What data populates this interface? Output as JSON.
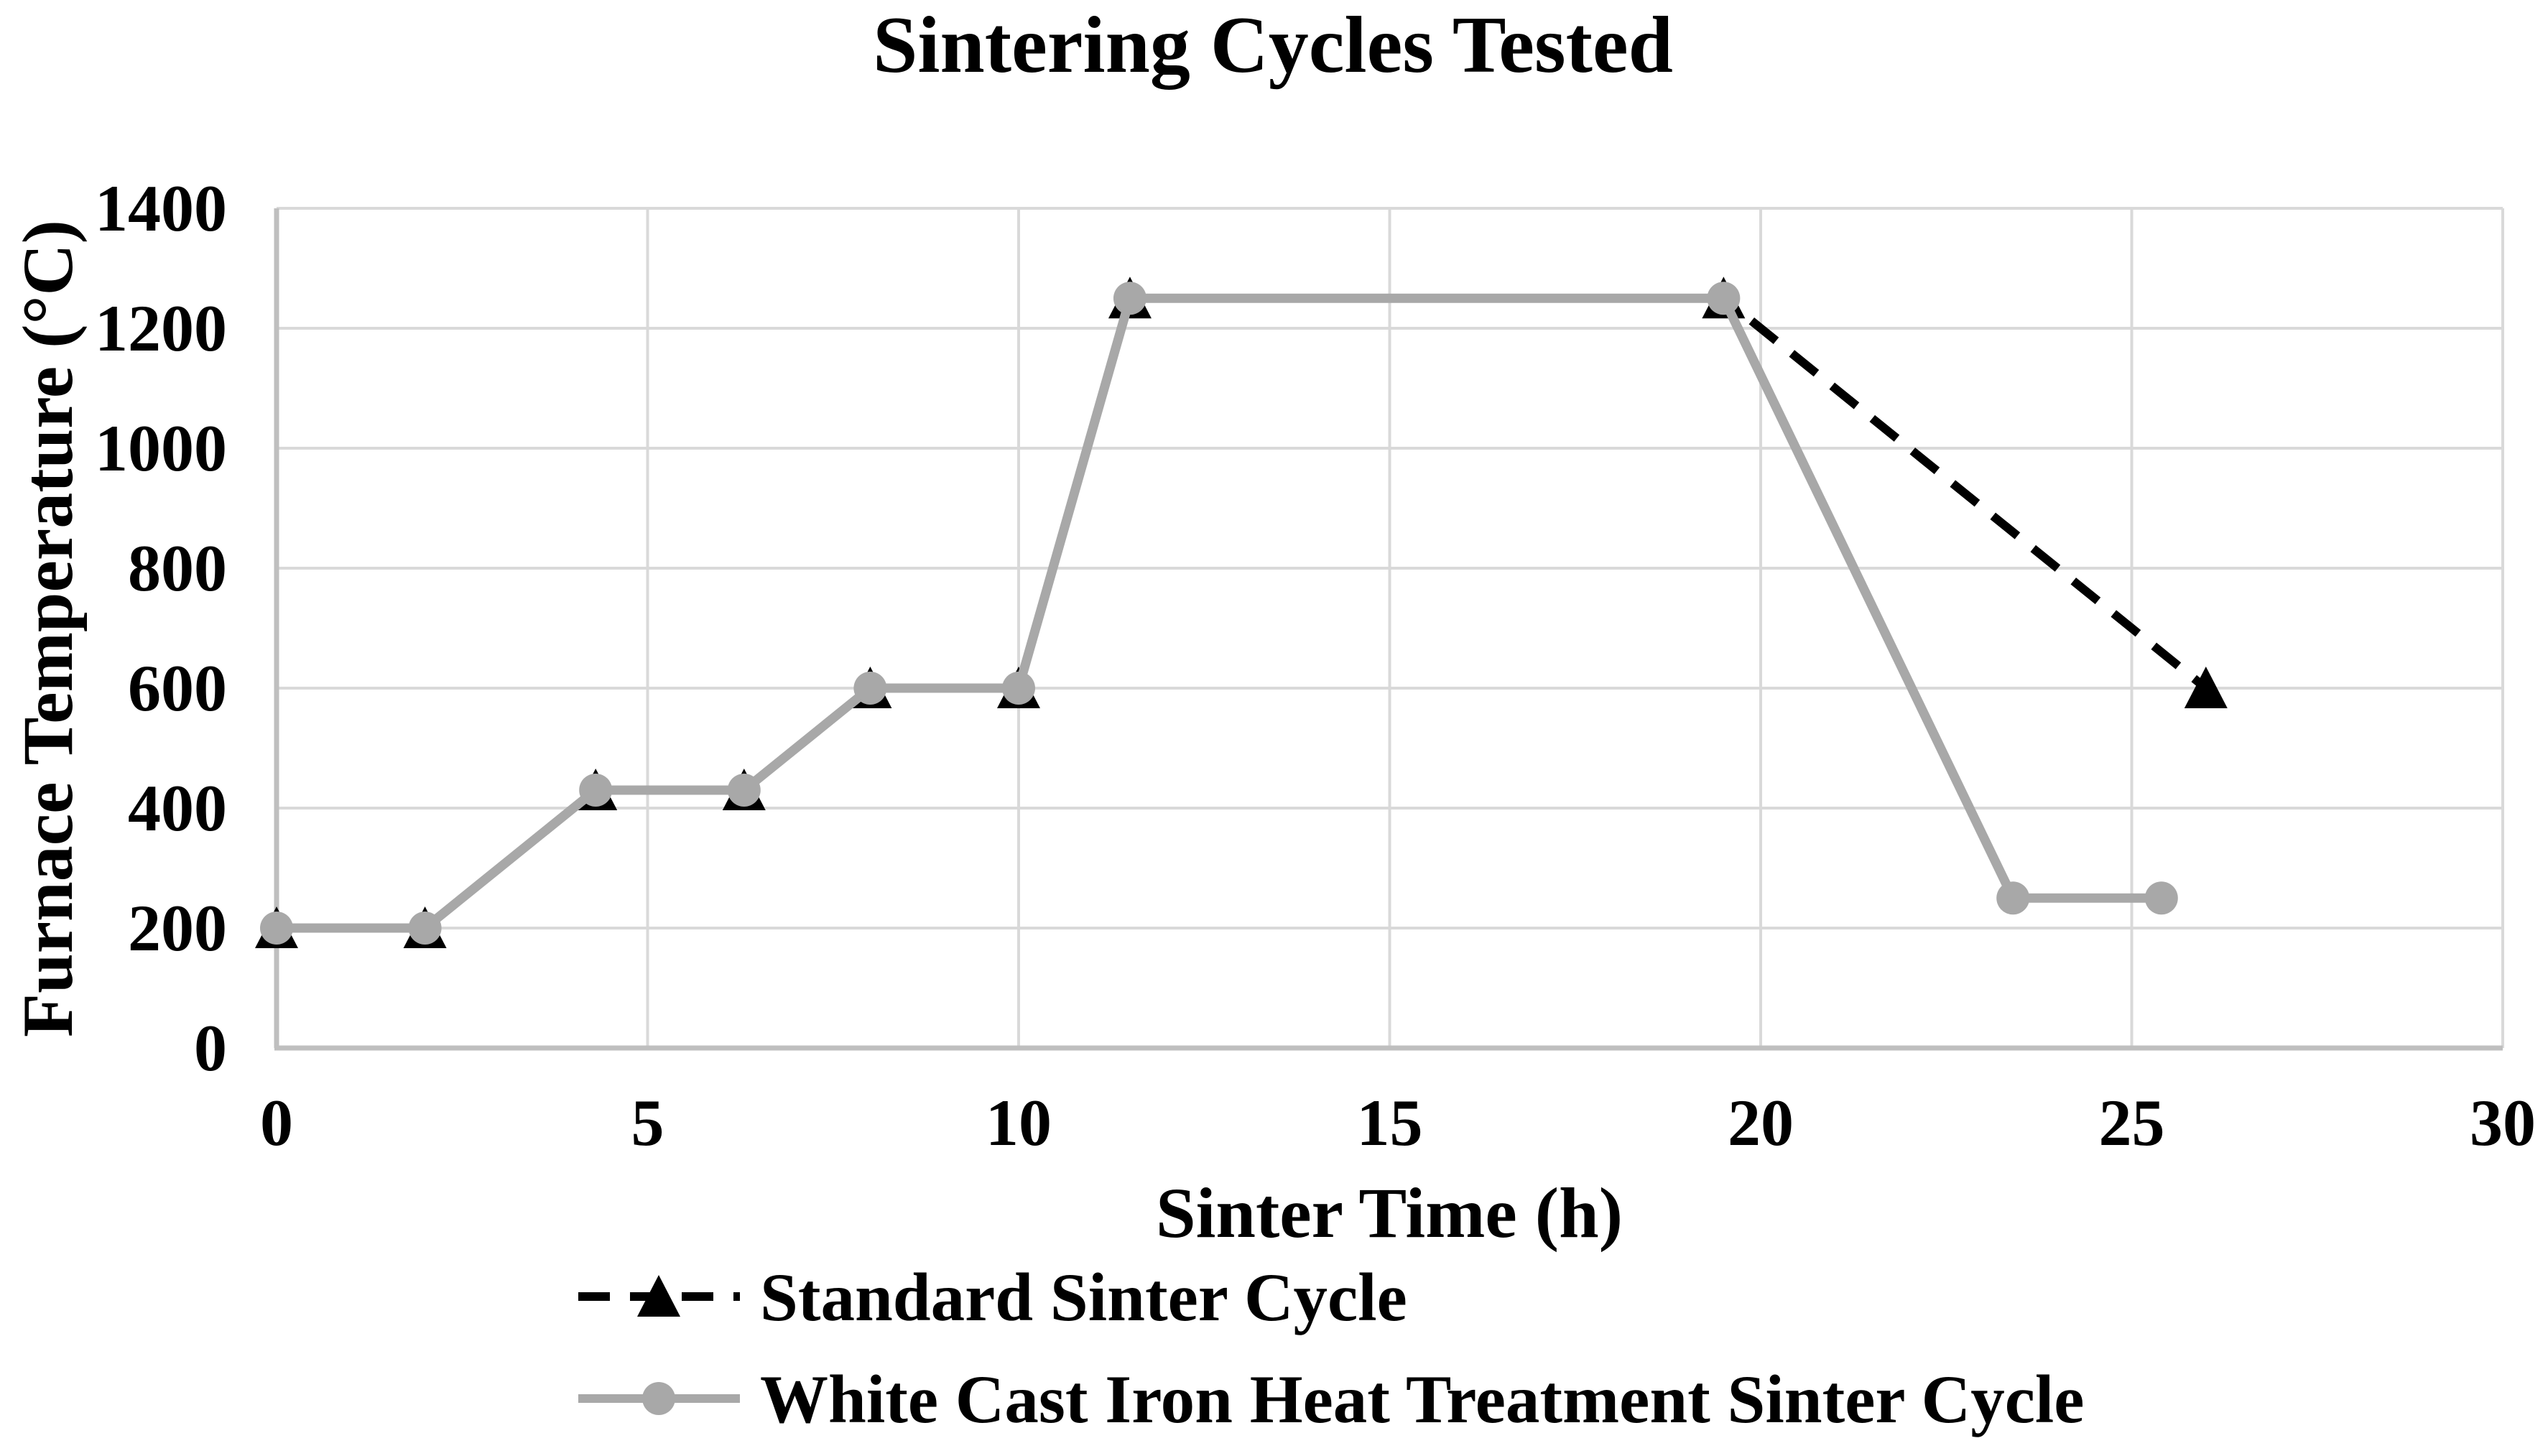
{
  "title": "Sintering Cycles Tested",
  "chart_data": {
    "type": "line",
    "title": "Sintering Cycles Tested",
    "xlabel": "Sinter Time (h)",
    "ylabel": "Furnace Temperature (°C)",
    "xlim": [
      0,
      30
    ],
    "ylim": [
      0,
      1400
    ],
    "x_ticks": [
      0,
      5,
      10,
      15,
      20,
      25,
      30
    ],
    "y_ticks": [
      0,
      200,
      400,
      600,
      800,
      1000,
      1200,
      1400
    ],
    "grid": true,
    "legend_position": "bottom-left",
    "series": [
      {
        "name": "Standard Sinter Cycle",
        "color": "#000000",
        "line_style": "dashed",
        "marker": "triangle",
        "points": [
          [
            0,
            200
          ],
          [
            2,
            200
          ],
          [
            4.3,
            430
          ],
          [
            6.3,
            430
          ],
          [
            8,
            600
          ],
          [
            10,
            600
          ],
          [
            11.5,
            1250
          ],
          [
            19.5,
            1250
          ],
          [
            26,
            600
          ]
        ]
      },
      {
        "name": "White Cast Iron Heat Treatment Sinter Cycle",
        "color": "#a8a8a8",
        "line_style": "solid",
        "marker": "circle",
        "points": [
          [
            0,
            200
          ],
          [
            2,
            200
          ],
          [
            4.3,
            430
          ],
          [
            6.3,
            430
          ],
          [
            8,
            600
          ],
          [
            10,
            600
          ],
          [
            11.5,
            1250
          ],
          [
            19.5,
            1250
          ],
          [
            23.4,
            250
          ],
          [
            25.4,
            250
          ]
        ]
      }
    ],
    "colors": {
      "background": "#ffffff",
      "gridline": "#d9d9d9",
      "axis_line": "#bfbfbf",
      "text": "#000000"
    }
  }
}
